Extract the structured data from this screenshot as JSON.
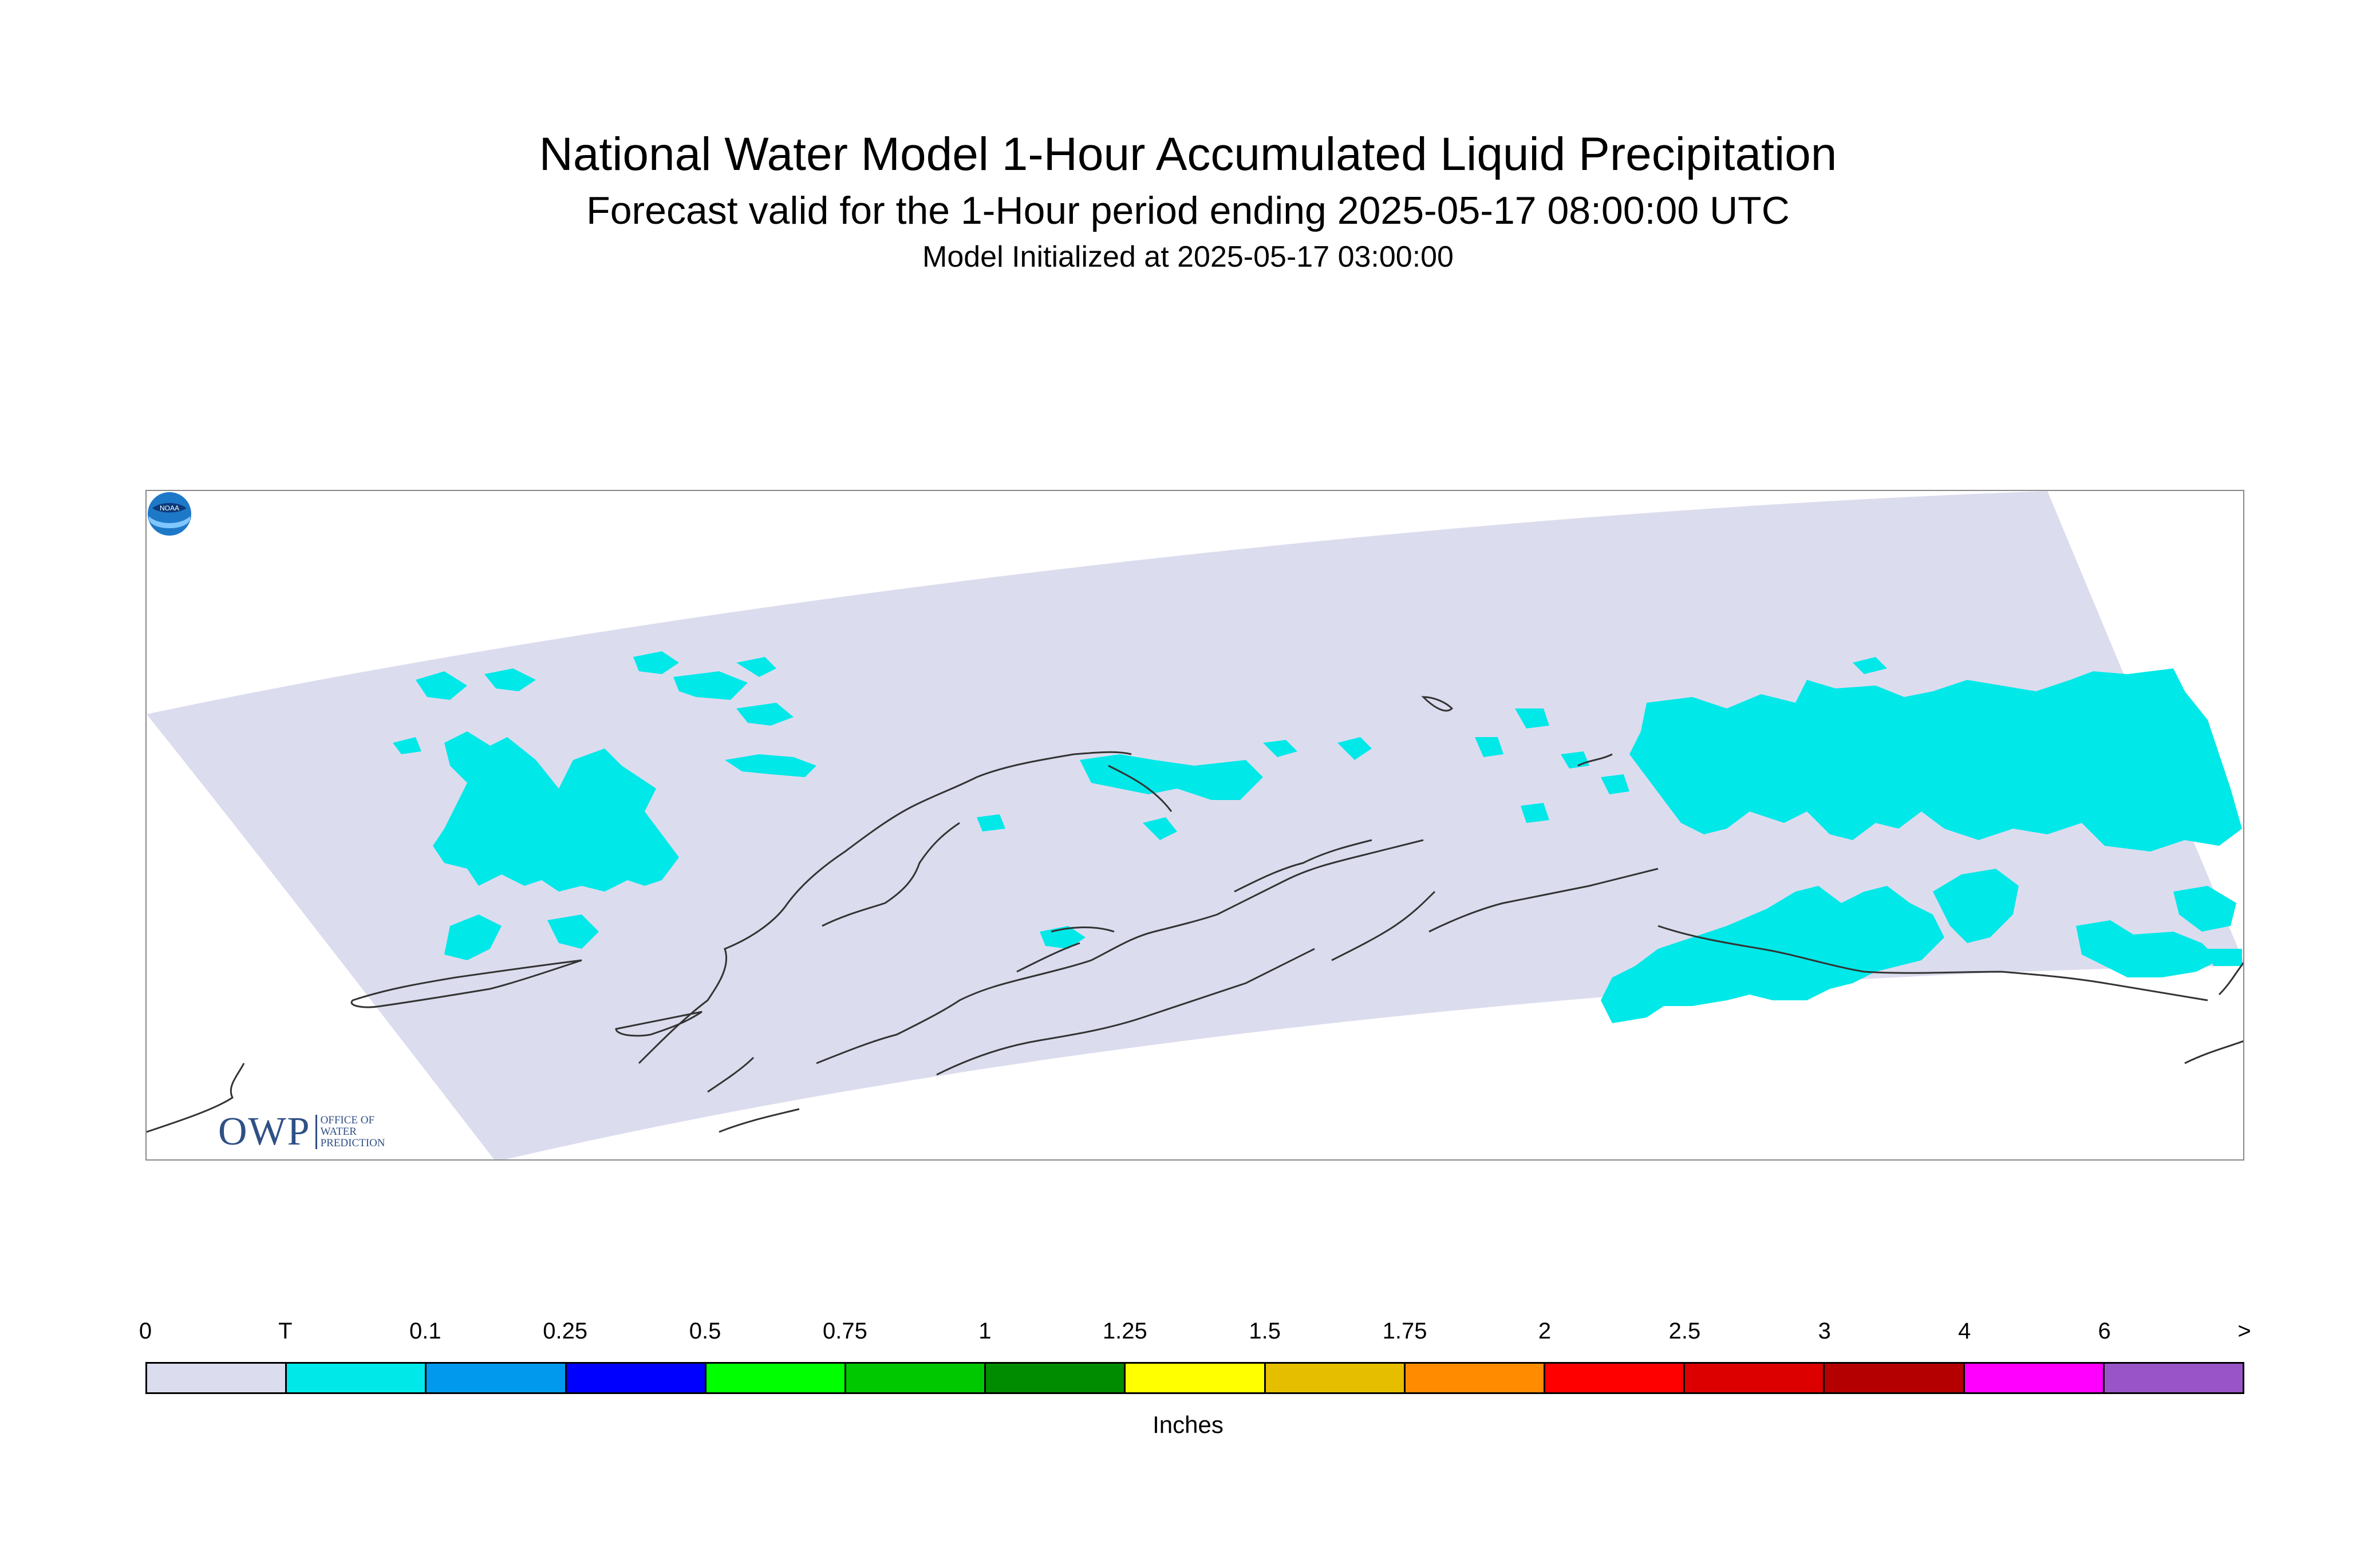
{
  "title": "National Water Model 1-Hour Accumulated Liquid Precipitation",
  "subtitle": "Forecast valid for the 1-Hour period ending 2025-05-17 08:00:00 UTC",
  "init_line": "Model Initialized at 2025-05-17 03:00:00",
  "logos": {
    "owp": "OWP",
    "owp_sub": [
      "OFFICE OF",
      "WATER",
      "PREDICTION"
    ],
    "noaa": "NOAA"
  },
  "colors": {
    "domain_fill": "#dcdcef",
    "trace_fill": "#00e8e8",
    "coastline": "#333333"
  },
  "legend": {
    "unit": "Inches",
    "labels": [
      "0",
      "T",
      "0.1",
      "0.25",
      "0.5",
      "0.75",
      "1",
      "1.25",
      "1.5",
      "1.75",
      "2",
      "2.5",
      "3",
      "4",
      "6",
      ">"
    ],
    "colors": [
      "#dcdcef",
      "#00e8e8",
      "#0099ee",
      "#0000ff",
      "#00ff00",
      "#00c800",
      "#008c00",
      "#ffff00",
      "#e6be00",
      "#ff8c00",
      "#ff0000",
      "#dc0000",
      "#b40000",
      "#ff00ff",
      "#9955c8"
    ]
  }
}
